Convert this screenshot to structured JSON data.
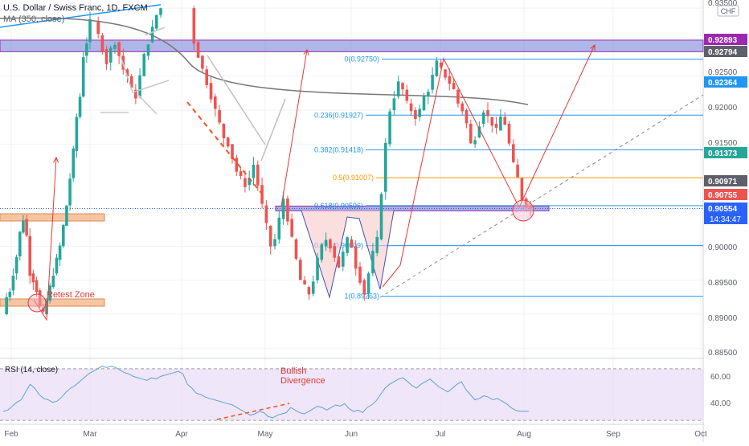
{
  "header": {
    "symbol_title": "U.S. Dollar / Swiss Franc, 1D, FXCM",
    "ma_label": "MA (350, close)"
  },
  "currency_badge": "CHF",
  "colors": {
    "up": "#26a69a",
    "down": "#ef5350",
    "fib_line": "#2196f3",
    "fib_half": "#ff9800",
    "zone_blue": "#6c7bd4",
    "zone_orange": "#f4b183",
    "rsi_line": "#5ba3d6",
    "rsi_band": "#eadcf7",
    "pattern_fill": "#f9c9c9",
    "ma_line": "#777777"
  },
  "price_axis": {
    "ticks": [
      "0.93500",
      "0.92500",
      "0.92000",
      "0.91500",
      "0.90000",
      "0.89500",
      "0.89000",
      "0.88500"
    ],
    "labels": [
      {
        "text": "0.92893",
        "color": "#9c27b0"
      },
      {
        "text": "0.92794",
        "color": "#5d606b"
      },
      {
        "text": "0.92364",
        "color": "#2196f3"
      },
      {
        "text": "0.91373",
        "color": "#26a69a"
      },
      {
        "text": "0.90971",
        "color": "#5d606b"
      },
      {
        "text": "0.90755",
        "color": "#ef5350"
      },
      {
        "text": "0.90554",
        "color": "#2962ff"
      }
    ],
    "countdown": "14:34:47"
  },
  "time_axis": [
    "Feb",
    "Mar",
    "Apr",
    "May",
    "Jun",
    "Jul",
    "Aug",
    "Sep",
    "Oct"
  ],
  "fib_levels": [
    {
      "label": "0(0.92750)"
    },
    {
      "label": "0.236(0.91927)"
    },
    {
      "label": "0.382(0.91418)"
    },
    {
      "label": "0.5(0.91007)"
    },
    {
      "label": "0.618(0.90596)"
    },
    {
      "label": "0.786(0.90009)"
    },
    {
      "label": "1(0.89263)"
    }
  ],
  "annotations": {
    "retest": "Retest Zone",
    "bullish_1": "Bullish",
    "bullish_2": "Divergence"
  },
  "rsi": {
    "label": "RSI (14, close)",
    "ticks": [
      "60.00",
      "40.00"
    ]
  },
  "chart_data": {
    "type": "candlestick",
    "title": "U.S. Dollar / Swiss Franc, 1D, FXCM",
    "price_range": [
      0.8835,
      0.9362
    ],
    "levels": {
      "resistance_zone": [
        0.9286,
        0.9303
      ],
      "support_zone": [
        0.9052,
        0.9059
      ],
      "fib": [
        0.9275,
        0.91927,
        0.91418,
        0.91007,
        0.90596,
        0.90009,
        0.89263
      ],
      "last_price": 0.90554
    },
    "close_path": [
      [
        0.89,
        0.8925,
        0.8935,
        0.896,
        0.8985,
        0.902,
        0.904,
        0.9015,
        0.896,
        0.895,
        0.8935,
        0.891,
        0.89,
        0.892,
        0.894,
        0.896,
        0.898,
        0.9,
        0.903,
        0.906,
        0.91,
        0.914,
        0.919,
        0.922,
        0.928,
        0.93,
        0.933
      ],
      [
        0.933,
        0.931,
        0.929,
        0.927,
        0.929,
        0.93,
        0.928,
        0.926,
        0.925,
        0.923,
        0.922,
        0.925,
        0.928,
        0.93,
        0.932,
        0.934,
        0.935
      ],
      [
        0.935,
        0.93,
        0.928,
        0.926,
        0.924,
        0.922,
        0.92,
        0.918,
        0.916,
        0.915,
        0.913,
        0.911,
        0.91,
        0.909,
        0.91,
        0.912,
        0.909,
        0.906,
        0.903,
        0.9,
        0.901,
        0.904,
        0.907,
        0.904,
        0.901,
        0.898,
        0.895,
        0.894,
        0.893,
        0.895,
        0.898,
        0.9,
        0.901,
        0.9,
        0.8985,
        0.897,
        0.899,
        0.901,
        0.9,
        0.897,
        0.895,
        0.893,
        0.896,
        0.899,
        0.901,
        0.908,
        0.915,
        0.92,
        0.922,
        0.924,
        0.923,
        0.921,
        0.92,
        0.919,
        0.92,
        0.922,
        0.923,
        0.925,
        0.927,
        0.926,
        0.925,
        0.924,
        0.923,
        0.921,
        0.92,
        0.918,
        0.915,
        0.916,
        0.918,
        0.92,
        0.919,
        0.918,
        0.917,
        0.919,
        0.918,
        0.915,
        0.912,
        0.91,
        0.907,
        0.906,
        0.9055
      ]
    ],
    "ma_350": [
      [
        0.9335,
        0.927
      ],
      [
        0.9235,
        0.9208
      ]
    ],
    "rsi": {
      "levels": [
        70,
        30
      ],
      "values": [
        37,
        38,
        41,
        44,
        46,
        52,
        58,
        55,
        50,
        47,
        46,
        44,
        45,
        48,
        52,
        55,
        57,
        60,
        63,
        66,
        68,
        70,
        72,
        71,
        72,
        71,
        69,
        67,
        66,
        64,
        63,
        62,
        61,
        63,
        62,
        64,
        65,
        66,
        67,
        68,
        66,
        58,
        55,
        51,
        50,
        48,
        47,
        46,
        45,
        44,
        43,
        42,
        40,
        38,
        36,
        34,
        35,
        37,
        36,
        33,
        32,
        34,
        35,
        36,
        40,
        38,
        36,
        35,
        37,
        39,
        41,
        40,
        38,
        40,
        42,
        41,
        43,
        39,
        37,
        38,
        36,
        40,
        42,
        45,
        50,
        55,
        58,
        60,
        62,
        63,
        60,
        57,
        55,
        58,
        60,
        62,
        59,
        56,
        54,
        52,
        55,
        58,
        60,
        54,
        50,
        46,
        47,
        49,
        48,
        46,
        47,
        45,
        43,
        40,
        38,
        37,
        37,
        37
      ]
    }
  }
}
